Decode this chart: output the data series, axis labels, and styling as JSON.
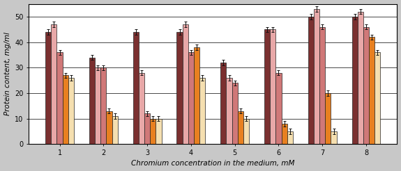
{
  "title": "",
  "xlabel": "Chromium concentration in the medium, mM",
  "ylabel": "Protein content, mg/ml",
  "groups": [
    1,
    2,
    3,
    4,
    5,
    6,
    7,
    8
  ],
  "series": [
    {
      "values": [
        44,
        34,
        44,
        44,
        32,
        45,
        50,
        50
      ],
      "color": "#7B3030",
      "error": 1.0
    },
    {
      "values": [
        47,
        30,
        28,
        47,
        26,
        45,
        53,
        52
      ],
      "color": "#E8A8A8",
      "error": 1.0
    },
    {
      "values": [
        36,
        30,
        12,
        36,
        24,
        28,
        46,
        46
      ],
      "color": "#D07878",
      "error": 1.0
    },
    {
      "values": [
        27,
        13,
        10,
        38,
        13,
        8,
        20,
        42
      ],
      "color": "#E88020",
      "error": 1.0
    },
    {
      "values": [
        26,
        11,
        10,
        26,
        10,
        5,
        5,
        36
      ],
      "color": "#F5DFB0",
      "error": 1.0
    }
  ],
  "bar_width": 0.13,
  "ylim": [
    0,
    55
  ],
  "yticks": [
    0,
    10,
    20,
    30,
    40,
    50
  ],
  "error_bar_color": "#111111",
  "error_cap_size": 1.5,
  "background_color": "#c8c8c8",
  "plot_bg_color": "#ffffff",
  "grid_color": "#000000",
  "tick_fontsize": 7,
  "label_fontsize": 7.5
}
